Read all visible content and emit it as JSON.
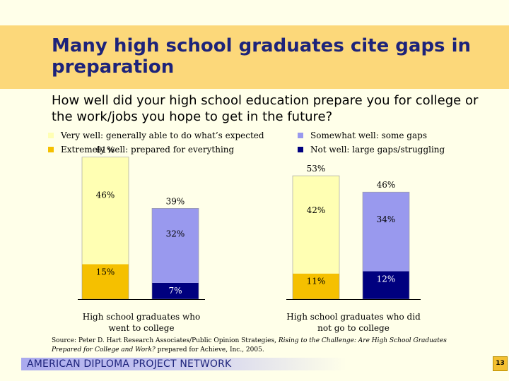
{
  "title": "Many high school graduates cite gaps in preparation",
  "subtitle": "How well did your high school education prepare you for college or the work/jobs you hope to get in the future?",
  "legend": [
    {
      "label": "Very well: generally able to do what’s expected",
      "color": "#FFFFB3"
    },
    {
      "label": "Extremely well: prepared for everything",
      "color": "#F5C000"
    },
    {
      "label": "Somewhat well: some gaps",
      "color": "#9999EE"
    },
    {
      "label": "Not well: large gaps/struggling",
      "color": "#00007F"
    }
  ],
  "chart_data": {
    "type": "bar",
    "stacked": true,
    "groups": [
      "High school graduates who went to college",
      "High school graduates who did not go to college"
    ],
    "bars": [
      {
        "group": 0,
        "total": "61%",
        "segments": [
          {
            "series": "Extremely well: prepared for everything",
            "value": 15,
            "label": "15%"
          },
          {
            "series": "Very well: generally able to do what’s expected",
            "value": 46,
            "label": "46%"
          }
        ]
      },
      {
        "group": 0,
        "total": "39%",
        "segments": [
          {
            "series": "Not well: large gaps/struggling",
            "value": 7,
            "label": "7%"
          },
          {
            "series": "Somewhat well: some gaps",
            "value": 32,
            "label": "32%"
          }
        ]
      },
      {
        "group": 1,
        "total": "53%",
        "segments": [
          {
            "series": "Extremely well: prepared for everything",
            "value": 11,
            "label": "11%"
          },
          {
            "series": "Very well: generally able to do what’s expected",
            "value": 42,
            "label": "42%"
          }
        ]
      },
      {
        "group": 1,
        "total": "46%",
        "segments": [
          {
            "series": "Not well: large gaps/struggling",
            "value": 12,
            "label": "12%"
          },
          {
            "series": "Somewhat well: some gaps",
            "value": 34,
            "label": "34%"
          }
        ]
      }
    ]
  },
  "source": {
    "prefix": "Source: Peter D. Hart Research Associates/Public Opinion Strategies, ",
    "italic": "Rising to the Challenge: Are High School Graduates Prepared for College and Work?",
    "suffix": " prepared for Achieve, Inc., 2005."
  },
  "footer": "AMERICAN DIPLOMA PROJECT NETWORK",
  "page_number": "13"
}
